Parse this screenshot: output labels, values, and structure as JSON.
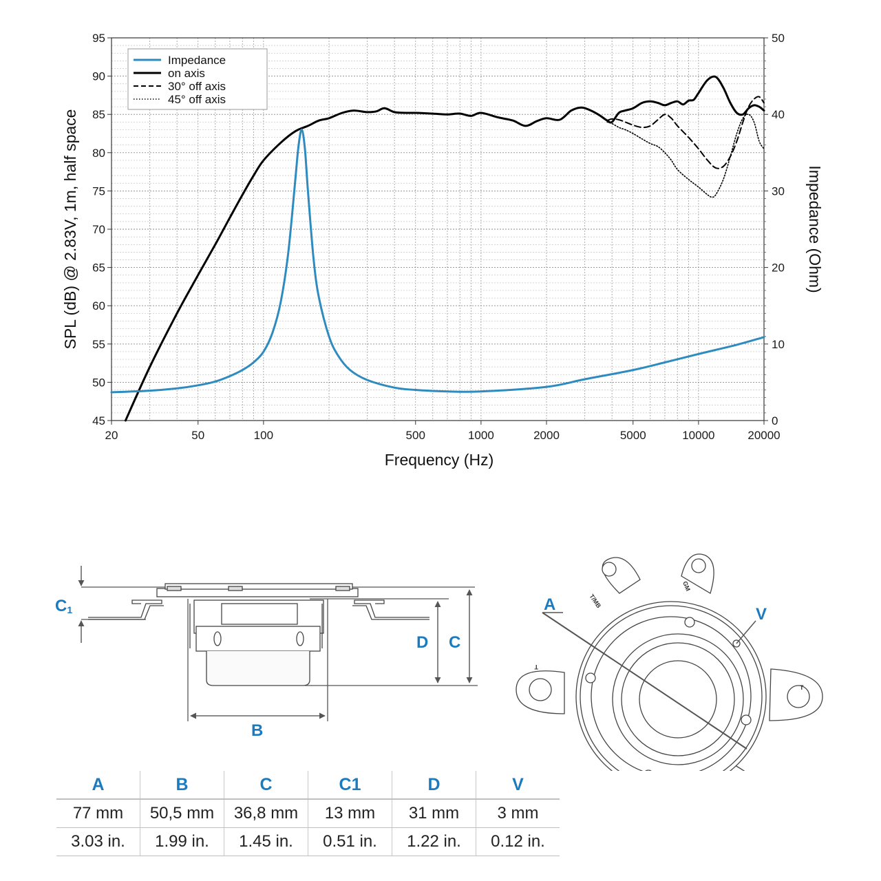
{
  "chart_data": {
    "type": "line",
    "xlabel": "Frequency (Hz)",
    "ylabel": "SPL (dB) @ 2.83V, 1m, half space",
    "y2label": "Impedance (Ohm)",
    "xscale": "log",
    "xlim": [
      20,
      20000
    ],
    "ylim": [
      45,
      95
    ],
    "y2lim": [
      0,
      50
    ],
    "grid": true,
    "legend_position": "top-left",
    "x_ticks": [
      {
        "value": 20,
        "label": "20"
      },
      {
        "value": 50,
        "label": "50"
      },
      {
        "value": 100,
        "label": "100"
      },
      {
        "value": 500,
        "label": "500"
      },
      {
        "value": 1000,
        "label": "1000"
      },
      {
        "value": 2000,
        "label": "2000"
      },
      {
        "value": 5000,
        "label": "5000"
      },
      {
        "value": 10000,
        "label": "10000"
      },
      {
        "value": 20000,
        "label": "20000"
      }
    ],
    "y_ticks": [
      {
        "value": 95,
        "label": "95"
      },
      {
        "value": 90,
        "label": "90"
      },
      {
        "value": 85,
        "label": "85"
      },
      {
        "value": 80,
        "label": "80"
      },
      {
        "value": 75,
        "label": "75"
      },
      {
        "value": 70,
        "label": "70"
      },
      {
        "value": 65,
        "label": "65"
      },
      {
        "value": 60,
        "label": "60"
      },
      {
        "value": 55,
        "label": "55"
      },
      {
        "value": 50,
        "label": "50"
      },
      {
        "value": 45,
        "label": "45"
      }
    ],
    "y2_ticks": [
      {
        "value": 50,
        "label": "50"
      },
      {
        "value": 40,
        "label": "40"
      },
      {
        "value": 30,
        "label": "30"
      },
      {
        "value": 20,
        "label": "20"
      },
      {
        "value": 10,
        "label": "10"
      },
      {
        "value": 0,
        "label": "0"
      }
    ],
    "series": [
      {
        "name": "Impedance",
        "axis": "right",
        "color": "#2e8bc0",
        "style": "solid",
        "x": [
          20,
          30,
          40,
          50,
          60,
          70,
          80,
          90,
          100,
          110,
          120,
          130,
          140,
          145,
          150,
          155,
          160,
          170,
          180,
          200,
          220,
          250,
          300,
          400,
          500,
          700,
          1000,
          2000,
          3000,
          5000,
          7000,
          10000,
          15000,
          20000
        ],
        "y": [
          3.7,
          3.9,
          4.2,
          4.6,
          5.1,
          5.8,
          6.6,
          7.6,
          9.0,
          11.5,
          15.5,
          22.0,
          31.5,
          36.0,
          38.0,
          35.5,
          30.0,
          21.0,
          16.0,
          11.0,
          8.5,
          6.6,
          5.3,
          4.3,
          4.0,
          3.8,
          3.8,
          4.4,
          5.4,
          6.6,
          7.6,
          8.7,
          9.9,
          10.9
        ]
      },
      {
        "name": "on axis",
        "axis": "left",
        "color": "#000000",
        "style": "solid",
        "x": [
          23.2,
          30,
          40,
          50,
          60,
          70,
          80,
          90,
          100,
          120,
          140,
          160,
          180,
          200,
          230,
          260,
          300,
          330,
          360,
          400,
          450,
          500,
          600,
          700,
          800,
          900,
          1000,
          1200,
          1400,
          1600,
          1800,
          2000,
          2300,
          2600,
          2900,
          3200,
          3500,
          3800,
          4000,
          4300,
          4600,
          5000,
          5500,
          6000,
          6500,
          7000,
          7500,
          8000,
          8500,
          9000,
          9500,
          10000,
          11000,
          12000,
          13000,
          14000,
          15000,
          16000,
          17000,
          18000,
          19000,
          20000
        ],
        "y": [
          45,
          52,
          59,
          64,
          68,
          71.5,
          74.5,
          77,
          79,
          81.3,
          82.8,
          83.5,
          84.2,
          84.5,
          85.2,
          85.5,
          85.3,
          85.4,
          85.8,
          85.3,
          85.2,
          85.2,
          85.1,
          85.0,
          85.1,
          84.8,
          85.2,
          84.6,
          84.2,
          83.5,
          84.1,
          84.5,
          84.3,
          85.5,
          85.9,
          85.5,
          84.9,
          84.2,
          84.0,
          85.2,
          85.5,
          85.8,
          86.5,
          86.7,
          86.5,
          86.2,
          86.5,
          86.7,
          86.3,
          86.8,
          86.9,
          87.8,
          89.5,
          89.9,
          88.5,
          86.5,
          85.2,
          85.0,
          85.8,
          86.2,
          86.0,
          85.5
        ]
      },
      {
        "name": "30° off axis",
        "axis": "left",
        "color": "#000000",
        "style": "dashed",
        "x": [
          3800,
          4000,
          4300,
          4600,
          5000,
          5500,
          6000,
          6500,
          7000,
          7500,
          8000,
          9000,
          10000,
          11000,
          12000,
          13000,
          14000,
          15000,
          16000,
          17000,
          18000,
          19000,
          20000
        ],
        "y": [
          84.2,
          84.4,
          84.3,
          84.0,
          83.6,
          83.3,
          83.5,
          84.3,
          85.0,
          84.5,
          83.5,
          82.0,
          80.5,
          79.0,
          78.0,
          78.2,
          79.5,
          81.5,
          84.0,
          86.0,
          87.0,
          87.3,
          86.5
        ]
      },
      {
        "name": "45° off axis",
        "axis": "left",
        "color": "#000000",
        "style": "dotted",
        "x": [
          3800,
          4000,
          4300,
          4600,
          5000,
          5500,
          6000,
          6500,
          7000,
          7500,
          8000,
          9000,
          10000,
          11000,
          11500,
          12000,
          13000,
          14000,
          15000,
          16000,
          17000,
          18000,
          19000,
          20000
        ],
        "y": [
          84.0,
          83.8,
          83.3,
          83.0,
          82.5,
          81.8,
          81.2,
          80.8,
          80.0,
          79.0,
          77.8,
          76.5,
          75.5,
          74.5,
          74.2,
          74.5,
          76.5,
          79.5,
          82.5,
          84.5,
          85.0,
          84.0,
          81.5,
          80.5
        ]
      }
    ]
  },
  "drawing": {
    "side_view": {
      "labels": {
        "c1": "C",
        "c1_sub": "1",
        "d": "D",
        "c": "C",
        "b": "B"
      }
    },
    "front_view": {
      "labels": {
        "a": "A",
        "v": "V"
      },
      "tab_marks": {
        "tmb": "T/MB",
        "gm": "GM",
        "t": "T"
      }
    }
  },
  "spec_table": {
    "headers": [
      "A",
      "B",
      "C",
      "C1",
      "D",
      "V"
    ],
    "rows": [
      [
        "77 mm",
        "50,5 mm",
        "36,8 mm",
        "13 mm",
        "31 mm",
        "3 mm"
      ],
      [
        "3.03 in.",
        "1.99 in.",
        "1.45 in.",
        "0.51 in.",
        "1.22 in.",
        "0.12 in."
      ]
    ]
  }
}
